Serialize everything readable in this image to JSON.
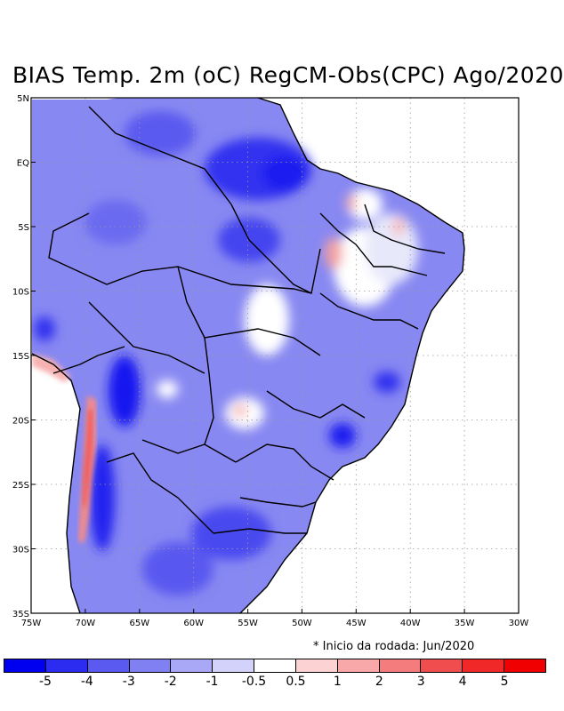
{
  "title": "BIAS Temp. 2m (oC) RegCM-Obs(CPC) Ago/2020",
  "map": {
    "lat_labels": [
      "5N",
      "EQ",
      "5S",
      "10S",
      "15S",
      "20S",
      "25S",
      "30S",
      "35S"
    ],
    "lon_labels": [
      "75W",
      "70W",
      "65W",
      "60W",
      "55W",
      "50W",
      "45W",
      "40W",
      "35W",
      "30W"
    ],
    "extent": {
      "lon": [
        -75,
        -30
      ],
      "lat": [
        -35,
        5
      ]
    }
  },
  "note": "* Inicio da rodada: Jun/2020",
  "legend": {
    "labels": [
      "-5",
      "-4",
      "-3",
      "-2",
      "-1",
      "-0.5",
      "0.5",
      "1",
      "2",
      "3",
      "4",
      "5"
    ],
    "colors": [
      "#0000f0",
      "#2c2cf0",
      "#5a5af0",
      "#8080f2",
      "#a8a8f6",
      "#d2d2fa",
      "#ffffff",
      "#fcd2d2",
      "#f8a8a8",
      "#f47c7c",
      "#f04e4e",
      "#f02828",
      "#f00000"
    ]
  }
}
